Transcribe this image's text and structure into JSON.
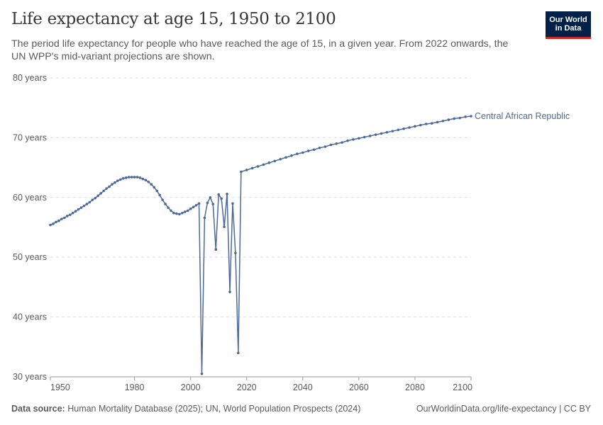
{
  "header": {
    "title": "Life expectancy at age 15, 1950 to 2100",
    "subtitle": "The period life expectancy for people who have reached the age of 15, in a given year. From 2022 onwards, the UN WPP's mid-variant projections are shown."
  },
  "logo": {
    "line1": "Our World",
    "line2": "in Data",
    "bg_color": "#002147",
    "accent_color": "#ce261e"
  },
  "footer": {
    "source_label": "Data source:",
    "source_text": "Human Mortality Database (2025); UN, World Population Prospects (2024)",
    "link": "OurWorldinData.org/life-expectancy | CC BY"
  },
  "chart_data": {
    "type": "line",
    "title": "Life expectancy at age 15, 1950 to 2100",
    "xlabel": "",
    "ylabel": "",
    "xlim": [
      1950,
      2100
    ],
    "ylim": [
      30,
      80
    ],
    "x_ticks": [
      1950,
      1980,
      2000,
      2020,
      2040,
      2060,
      2080,
      2100
    ],
    "y_ticks": [
      {
        "value": 30,
        "label": "30 years"
      },
      {
        "value": 40,
        "label": "40 years"
      },
      {
        "value": 50,
        "label": "50 years"
      },
      {
        "value": 60,
        "label": "60 years"
      },
      {
        "value": 70,
        "label": "70 years"
      },
      {
        "value": 80,
        "label": "80 years"
      }
    ],
    "grid": true,
    "legend": "end-of-line label",
    "series": [
      {
        "name": "Central African Republic",
        "color": "#4c6a9c",
        "points": [
          [
            1950,
            55.4
          ],
          [
            1951,
            55.6
          ],
          [
            1952,
            55.9
          ],
          [
            1953,
            56.1
          ],
          [
            1954,
            56.4
          ],
          [
            1955,
            56.6
          ],
          [
            1956,
            56.9
          ],
          [
            1957,
            57.1
          ],
          [
            1958,
            57.4
          ],
          [
            1959,
            57.7
          ],
          [
            1960,
            58.0
          ],
          [
            1961,
            58.3
          ],
          [
            1962,
            58.6
          ],
          [
            1963,
            58.9
          ],
          [
            1964,
            59.2
          ],
          [
            1965,
            59.6
          ],
          [
            1966,
            59.9
          ],
          [
            1967,
            60.3
          ],
          [
            1968,
            60.7
          ],
          [
            1969,
            61.1
          ],
          [
            1970,
            61.5
          ],
          [
            1971,
            61.8
          ],
          [
            1972,
            62.2
          ],
          [
            1973,
            62.5
          ],
          [
            1974,
            62.8
          ],
          [
            1975,
            63.0
          ],
          [
            1976,
            63.2
          ],
          [
            1977,
            63.3
          ],
          [
            1978,
            63.4
          ],
          [
            1979,
            63.4
          ],
          [
            1980,
            63.4
          ],
          [
            1981,
            63.4
          ],
          [
            1982,
            63.3
          ],
          [
            1983,
            63.1
          ],
          [
            1984,
            62.9
          ],
          [
            1985,
            62.6
          ],
          [
            1986,
            62.2
          ],
          [
            1987,
            61.7
          ],
          [
            1988,
            61.1
          ],
          [
            1989,
            60.4
          ],
          [
            1990,
            59.6
          ],
          [
            1991,
            58.9
          ],
          [
            1992,
            58.3
          ],
          [
            1993,
            57.8
          ],
          [
            1994,
            57.4
          ],
          [
            1995,
            57.3
          ],
          [
            1996,
            57.2
          ],
          [
            1997,
            57.4
          ],
          [
            1998,
            57.6
          ],
          [
            1999,
            57.8
          ],
          [
            2000,
            58.1
          ],
          [
            2001,
            58.4
          ],
          [
            2002,
            58.7
          ],
          [
            2003,
            59.0
          ],
          [
            2004,
            30.5
          ],
          [
            2005,
            56.6
          ],
          [
            2006,
            59.1
          ],
          [
            2007,
            60.0
          ],
          [
            2008,
            58.9
          ],
          [
            2009,
            51.3
          ],
          [
            2010,
            60.5
          ],
          [
            2011,
            59.8
          ],
          [
            2012,
            55.1
          ],
          [
            2013,
            60.6
          ],
          [
            2014,
            44.2
          ],
          [
            2015,
            59.0
          ],
          [
            2016,
            50.7
          ],
          [
            2017,
            34.0
          ],
          [
            2018,
            64.3
          ],
          [
            2020,
            64.6
          ],
          [
            2022,
            64.9
          ],
          [
            2024,
            65.2
          ],
          [
            2026,
            65.5
          ],
          [
            2028,
            65.8
          ],
          [
            2030,
            66.1
          ],
          [
            2032,
            66.4
          ],
          [
            2034,
            66.7
          ],
          [
            2036,
            67.0
          ],
          [
            2038,
            67.3
          ],
          [
            2040,
            67.5
          ],
          [
            2042,
            67.8
          ],
          [
            2044,
            68.0
          ],
          [
            2046,
            68.3
          ],
          [
            2048,
            68.5
          ],
          [
            2050,
            68.8
          ],
          [
            2052,
            69.0
          ],
          [
            2054,
            69.2
          ],
          [
            2056,
            69.5
          ],
          [
            2058,
            69.7
          ],
          [
            2060,
            69.9
          ],
          [
            2062,
            70.1
          ],
          [
            2064,
            70.3
          ],
          [
            2066,
            70.5
          ],
          [
            2068,
            70.7
          ],
          [
            2070,
            70.9
          ],
          [
            2072,
            71.1
          ],
          [
            2074,
            71.3
          ],
          [
            2076,
            71.5
          ],
          [
            2078,
            71.7
          ],
          [
            2080,
            71.9
          ],
          [
            2082,
            72.1
          ],
          [
            2084,
            72.3
          ],
          [
            2086,
            72.4
          ],
          [
            2088,
            72.6
          ],
          [
            2090,
            72.8
          ],
          [
            2092,
            73.0
          ],
          [
            2094,
            73.2
          ],
          [
            2096,
            73.3
          ],
          [
            2098,
            73.5
          ],
          [
            2100,
            73.6
          ]
        ]
      }
    ]
  }
}
